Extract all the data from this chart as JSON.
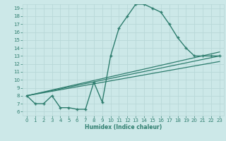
{
  "xlabel": "Humidex (Indice chaleur)",
  "background_color": "#cce8e8",
  "grid_color": "#b8d8d8",
  "line_color": "#2e7d6e",
  "xlim": [
    -0.5,
    23.5
  ],
  "ylim": [
    5.5,
    19.5
  ],
  "yticks": [
    6,
    7,
    8,
    9,
    10,
    11,
    12,
    13,
    14,
    15,
    16,
    17,
    18,
    19
  ],
  "xticks": [
    0,
    1,
    2,
    3,
    4,
    5,
    6,
    7,
    8,
    9,
    10,
    11,
    12,
    13,
    14,
    15,
    16,
    17,
    18,
    19,
    20,
    21,
    22,
    23
  ],
  "line1_x": [
    0,
    1,
    2,
    3,
    4,
    5,
    6,
    7,
    8,
    9,
    10,
    11,
    12,
    13,
    14,
    15,
    16,
    17,
    18,
    19,
    20,
    21,
    22,
    23
  ],
  "line1_y": [
    8,
    7,
    7,
    8,
    6.5,
    6.5,
    6.3,
    6.3,
    9.7,
    7.2,
    13,
    16.5,
    18,
    19.5,
    19.5,
    19,
    18.5,
    17,
    15.3,
    14,
    13,
    13,
    13,
    13
  ],
  "line2_x": [
    0,
    23
  ],
  "line2_y": [
    8,
    13.0
  ],
  "line3_x": [
    0,
    23
  ],
  "line3_y": [
    8,
    12.3
  ],
  "line4_x": [
    0,
    23
  ],
  "line4_y": [
    8,
    13.5
  ]
}
